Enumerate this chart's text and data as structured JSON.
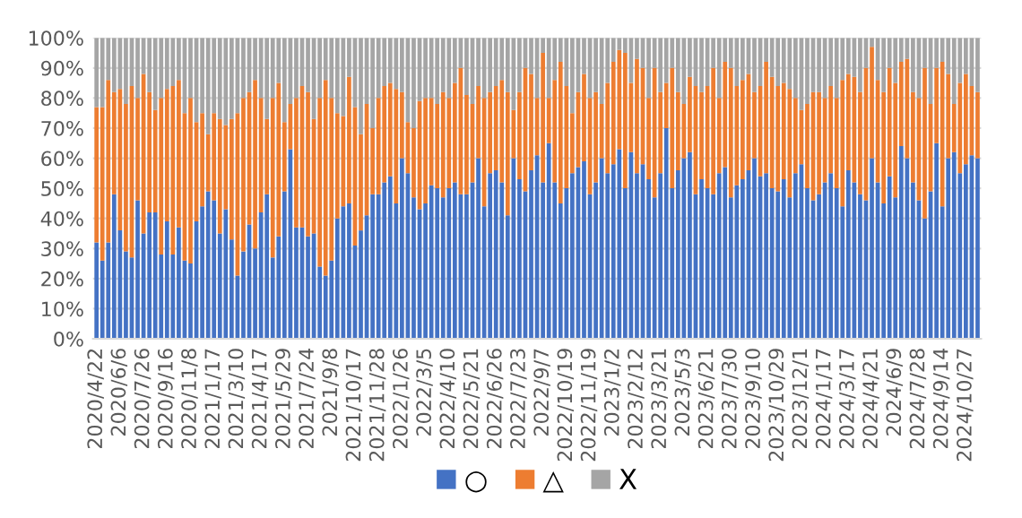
{
  "chart_data": {
    "type": "bar",
    "stacked": true,
    "categories": [
      "2020/4/22",
      null,
      null,
      null,
      "2020/6/6",
      null,
      null,
      null,
      "2020/7/26",
      null,
      null,
      null,
      "2020/9/16",
      null,
      null,
      null,
      "2020/11/8",
      null,
      null,
      null,
      "2021/1/17",
      null,
      null,
      null,
      "2021/3/10",
      null,
      null,
      null,
      "2021/4/17",
      null,
      null,
      null,
      "2021/5/29",
      null,
      null,
      null,
      "2021/7/24",
      null,
      null,
      null,
      "2021/9/8",
      null,
      null,
      null,
      "2021/10/17",
      null,
      null,
      null,
      "2021/11/28",
      null,
      null,
      null,
      "2022/1/26",
      null,
      null,
      null,
      "2022/3/5",
      null,
      null,
      null,
      "2022/4/10",
      null,
      null,
      null,
      "2022/5/21",
      null,
      null,
      null,
      "2022/6/26",
      null,
      null,
      null,
      "2022/7/23",
      null,
      null,
      null,
      "2022/9/7",
      null,
      null,
      null,
      "2022/10/19",
      null,
      null,
      null,
      "2022/11/19",
      null,
      null,
      null,
      "2023/1/2",
      null,
      null,
      null,
      "2023/2/12",
      null,
      null,
      null,
      "2023/3/21",
      null,
      null,
      null,
      "2023/5/3",
      null,
      null,
      null,
      "2023/6/21",
      null,
      null,
      null,
      "2023/7/30",
      null,
      null,
      null,
      "2023/9/10",
      null,
      null,
      null,
      "2023/10/29",
      null,
      null,
      null,
      "2023/12/1",
      null,
      null,
      null,
      "2024/1/17",
      null,
      null,
      null,
      "2024/3/17",
      null,
      null,
      null,
      "2024/4/21",
      null,
      null,
      null,
      "2024/6/9",
      null,
      null,
      null,
      "2024/7/28",
      null,
      null,
      null,
      "2024/9/14",
      null,
      null,
      null,
      "2024/10/27",
      null,
      null
    ],
    "series": [
      {
        "name": "○",
        "color": "#4472c4",
        "values": [
          32,
          26,
          32,
          48,
          36,
          29,
          27,
          46,
          35,
          42,
          42,
          28,
          39,
          28,
          37,
          26,
          25,
          39,
          44,
          49,
          46,
          35,
          43,
          33,
          21,
          29,
          38,
          30,
          42,
          48,
          27,
          34,
          49,
          63,
          37,
          37,
          34,
          35,
          24,
          21,
          26,
          40,
          44,
          45,
          31,
          36,
          41,
          48,
          48,
          52,
          54,
          45,
          60,
          55,
          47,
          43,
          45,
          51,
          50,
          47,
          50,
          52,
          48,
          48,
          52,
          60,
          44,
          55,
          56,
          52,
          41,
          60,
          53,
          49,
          56,
          61,
          52,
          65,
          52,
          45,
          50,
          55,
          57,
          59,
          48,
          52,
          60,
          55,
          58,
          63,
          50,
          62,
          55,
          58,
          53,
          47,
          55,
          70,
          50,
          56,
          60,
          62,
          48,
          53,
          50,
          48,
          55,
          57,
          47,
          51,
          53,
          56,
          60,
          54,
          55,
          50,
          49,
          53,
          47,
          55,
          58,
          50,
          46,
          48,
          52,
          55,
          50,
          44,
          56,
          52,
          48,
          46,
          60,
          52,
          45,
          54,
          47,
          64,
          60,
          52,
          46,
          40,
          49,
          65,
          44,
          60,
          62,
          55,
          58,
          61,
          60
        ]
      },
      {
        "name": "△",
        "color": "#ed7d31",
        "values": [
          45,
          51,
          54,
          34,
          47,
          49,
          57,
          34,
          53,
          40,
          34,
          52,
          44,
          56,
          49,
          49,
          55,
          33,
          31,
          19,
          29,
          38,
          28,
          40,
          54,
          51,
          44,
          56,
          38,
          25,
          53,
          51,
          23,
          15,
          43,
          47,
          48,
          38,
          56,
          65,
          54,
          35,
          30,
          42,
          46,
          32,
          37,
          22,
          32,
          32,
          31,
          38,
          22,
          17,
          23,
          36,
          35,
          29,
          28,
          35,
          30,
          33,
          42,
          33,
          26,
          24,
          36,
          27,
          28,
          34,
          41,
          16,
          29,
          41,
          32,
          19,
          43,
          15,
          34,
          47,
          34,
          20,
          25,
          29,
          32,
          30,
          18,
          30,
          34,
          33,
          45,
          23,
          38,
          32,
          27,
          43,
          27,
          15,
          40,
          26,
          18,
          25,
          36,
          29,
          34,
          42,
          25,
          35,
          43,
          33,
          33,
          32,
          22,
          30,
          37,
          37,
          35,
          32,
          36,
          25,
          18,
          28,
          36,
          34,
          28,
          29,
          30,
          42,
          32,
          35,
          34,
          44,
          37,
          34,
          37,
          36,
          38,
          28,
          33,
          30,
          34,
          50,
          29,
          25,
          48,
          28,
          16,
          30,
          30,
          23,
          22
        ]
      },
      {
        "name": "X",
        "color": "#a5a5a5",
        "values": [
          23,
          23,
          14,
          18,
          17,
          22,
          16,
          20,
          12,
          18,
          24,
          20,
          17,
          16,
          14,
          25,
          20,
          28,
          25,
          32,
          25,
          27,
          29,
          27,
          25,
          20,
          18,
          14,
          20,
          27,
          20,
          15,
          28,
          22,
          20,
          16,
          18,
          27,
          20,
          14,
          20,
          25,
          26,
          13,
          23,
          32,
          22,
          30,
          20,
          16,
          15,
          17,
          18,
          28,
          30,
          21,
          20,
          20,
          22,
          18,
          20,
          15,
          10,
          19,
          22,
          16,
          20,
          18,
          16,
          14,
          18,
          24,
          18,
          10,
          12,
          20,
          5,
          20,
          14,
          8,
          16,
          25,
          18,
          12,
          20,
          18,
          22,
          15,
          8,
          4,
          5,
          15,
          7,
          10,
          20,
          10,
          18,
          15,
          10,
          18,
          22,
          13,
          16,
          18,
          16,
          10,
          20,
          8,
          10,
          16,
          14,
          12,
          18,
          16,
          8,
          13,
          16,
          15,
          17,
          20,
          24,
          22,
          18,
          18,
          20,
          16,
          20,
          14,
          12,
          13,
          18,
          10,
          3,
          14,
          18,
          10,
          15,
          8,
          7,
          18,
          20,
          10,
          22,
          10,
          8,
          12,
          22,
          15,
          12,
          16,
          18
        ]
      }
    ],
    "ylim": [
      0,
      100
    ],
    "yticks": [
      {
        "value": 0,
        "label": "0%"
      },
      {
        "value": 10,
        "label": "10%"
      },
      {
        "value": 20,
        "label": "20%"
      },
      {
        "value": 30,
        "label": "30%"
      },
      {
        "value": 40,
        "label": "40%"
      },
      {
        "value": 50,
        "label": "50%"
      },
      {
        "value": 60,
        "label": "60%"
      },
      {
        "value": 70,
        "label": "70%"
      },
      {
        "value": 80,
        "label": "80%"
      },
      {
        "value": 90,
        "label": "90%"
      },
      {
        "value": 100,
        "label": "100%"
      }
    ],
    "grid": "y",
    "legend": "bottom"
  }
}
